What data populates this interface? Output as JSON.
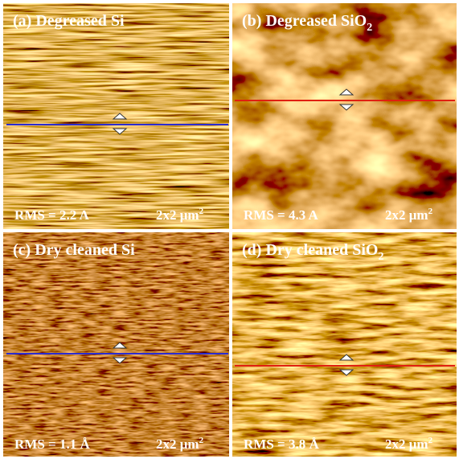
{
  "panels": [
    {
      "label": "(a) Degreased Si",
      "rms": "RMS = 2.2 A",
      "scale": "2x2 μm",
      "scale_sup": "2"
    },
    {
      "label": "(b) Degreased SiO",
      "label_sub": "2",
      "rms": "RMS = 4.3 A",
      "scale": "2x2 μm",
      "scale_sup": "2"
    },
    {
      "label": "(c) Dry cleaned Si",
      "rms": "RMS = 1.1 Å",
      "scale": "2x2 μm",
      "scale_sup": "2"
    },
    {
      "label": "(d) Dry cleaned SiO",
      "label_sub": "2",
      "rms": "RMS = 3.8 Å",
      "scale": "2x2 μm",
      "scale_sup": "2"
    }
  ]
}
